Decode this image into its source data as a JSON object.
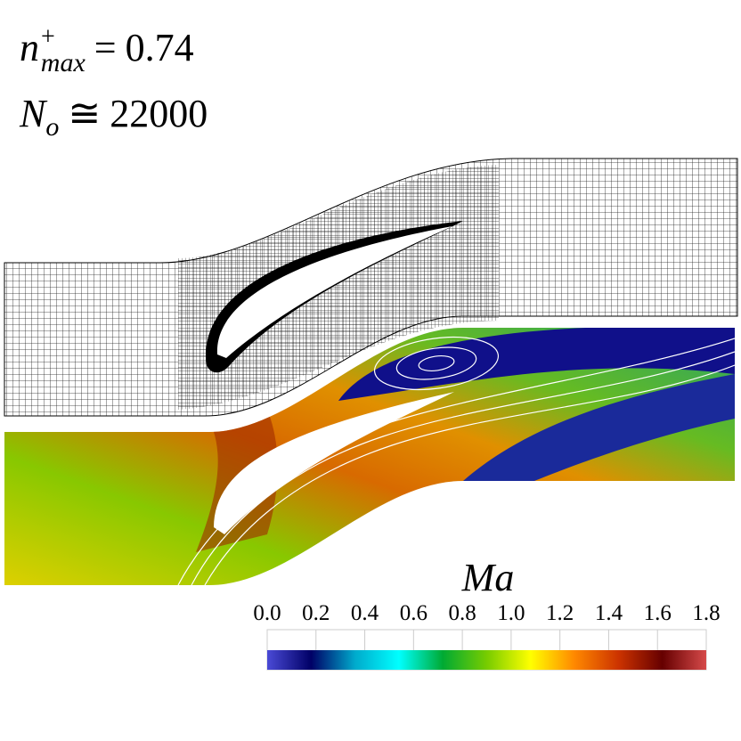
{
  "annotations": [
    {
      "symbol": "n",
      "superscript": "+",
      "subscript": "max",
      "relation": "=",
      "value": "0.74"
    },
    {
      "symbol": "N",
      "subscript": "o",
      "relation": "≅",
      "value": "22000"
    }
  ],
  "colorbar": {
    "label": "Ma",
    "lim": [
      0,
      1.8
    ],
    "ticks": [
      {
        "value": 0,
        "label": "0.0"
      },
      {
        "value": 0.2,
        "label": "0.2"
      },
      {
        "value": 0.4,
        "label": "0.4"
      },
      {
        "value": 0.6,
        "label": "0.6"
      },
      {
        "value": 0.8,
        "label": "0.8"
      },
      {
        "value": 1,
        "label": "1.0"
      },
      {
        "value": 1.2,
        "label": "1.2"
      },
      {
        "value": 1.4,
        "label": "1.4"
      },
      {
        "value": 1.6,
        "label": "1.6"
      },
      {
        "value": 1.8,
        "label": "1.8"
      }
    ],
    "colors": [
      "#4a4ad6",
      "#000066",
      "#00aacc",
      "#00ffff",
      "#00aa33",
      "#77cc00",
      "#ffff00",
      "#ff8800",
      "#cc3300",
      "#660000",
      "#d64a4a"
    ]
  }
}
